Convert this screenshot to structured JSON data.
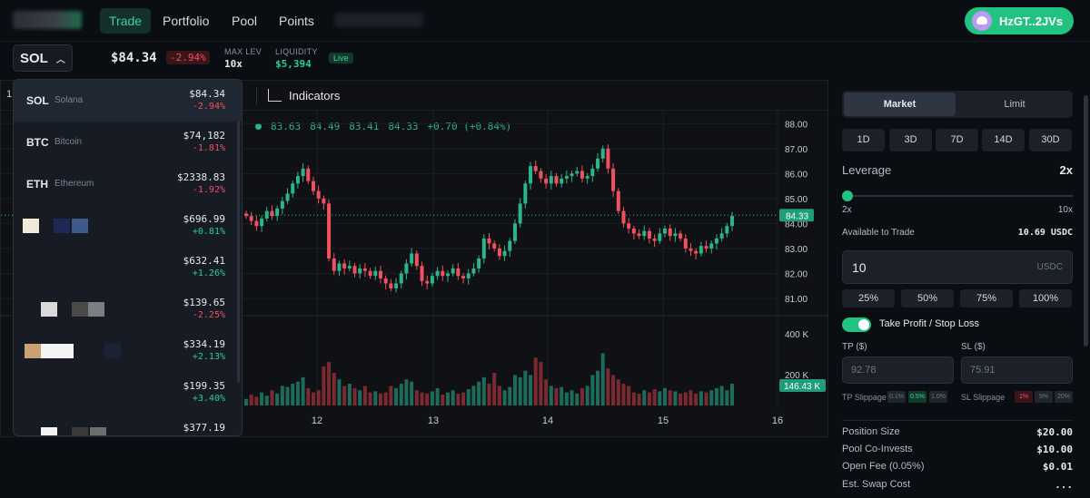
{
  "nav": {
    "items": [
      "Trade",
      "Portfolio",
      "Pool",
      "Points"
    ],
    "wallet": "HzGT..2JVs"
  },
  "ticker": {
    "symbol": "SOL",
    "price": "$84.34",
    "change": "-2.94%",
    "max_lev_label": "MAX LEV",
    "max_lev": "10x",
    "liquidity_label": "LIQUIDITY",
    "liquidity": "$5,394",
    "live": "Live"
  },
  "toolbar": {
    "interval": "1",
    "indicators": "Indicators"
  },
  "chart_data": {
    "type": "candlestick",
    "ohlc_legend": [
      "83.63",
      "84.49",
      "83.41",
      "84.33",
      "+0.70 (+0.84%)"
    ],
    "price_ticks": [
      "88.00",
      "87.00",
      "86.00",
      "85.00",
      "84.00",
      "83.00",
      "82.00",
      "81.00"
    ],
    "current_price_label": "84.33",
    "volume_ticks": [
      "400 K",
      "200 K"
    ],
    "current_volume_label": "146.43 K",
    "date_ticks": [
      "12",
      "13",
      "14",
      "15",
      "16"
    ],
    "ylim": [
      80.6,
      88.3
    ],
    "volume_max": 480,
    "close_series": [
      84.3,
      84.1,
      83.9,
      84.2,
      84.5,
      84.3,
      84.6,
      84.9,
      85.2,
      85.6,
      85.9,
      86.2,
      85.7,
      85.3,
      85.0,
      84.8,
      82.6,
      82.1,
      82.4,
      82.2,
      82.3,
      82.0,
      82.2,
      82.1,
      81.9,
      82.1,
      81.8,
      81.6,
      81.4,
      81.6,
      82.0,
      82.4,
      82.8,
      82.3,
      81.7,
      81.6,
      81.9,
      82.1,
      81.9,
      82.0,
      82.2,
      81.9,
      81.8,
      82.0,
      82.2,
      82.6,
      83.4,
      83.2,
      83.0,
      82.7,
      82.9,
      83.3,
      84.0,
      84.8,
      85.6,
      86.3,
      86.1,
      85.8,
      85.6,
      85.9,
      85.6,
      85.8,
      85.9,
      86.0,
      86.1,
      85.8,
      85.9,
      86.2,
      86.6,
      87.0,
      86.2,
      85.3,
      84.5,
      84.0,
      83.8,
      83.6,
      83.5,
      83.7,
      83.4,
      83.3,
      83.6,
      83.8,
      83.5,
      83.6,
      83.4,
      83.0,
      82.9,
      82.8,
      83.1,
      83.0,
      83.2,
      83.4,
      83.6,
      83.9,
      84.3
    ],
    "volumes": [
      30,
      50,
      40,
      60,
      45,
      70,
      55,
      90,
      85,
      100,
      110,
      130,
      80,
      60,
      70,
      180,
      200,
      150,
      120,
      90,
      100,
      80,
      70,
      90,
      60,
      65,
      55,
      60,
      90,
      80,
      100,
      120,
      110,
      70,
      60,
      55,
      65,
      80,
      50,
      60,
      70,
      55,
      60,
      75,
      90,
      110,
      130,
      100,
      150,
      90,
      70,
      85,
      140,
      130,
      160,
      140,
      220,
      200,
      120,
      90,
      80,
      85,
      60,
      70,
      55,
      80,
      90,
      140,
      160,
      240,
      170,
      140,
      120,
      100,
      90,
      60,
      55,
      70,
      60,
      75,
      65,
      80,
      70,
      65,
      55,
      60,
      70,
      55,
      65,
      60,
      70,
      80,
      90,
      70,
      100
    ],
    "down_flags": [
      0,
      1,
      1,
      0,
      0,
      1,
      0,
      0,
      0,
      0,
      0,
      0,
      1,
      1,
      1,
      1,
      1,
      1,
      0,
      1,
      0,
      1,
      0,
      1,
      1,
      0,
      1,
      1,
      1,
      0,
      0,
      0,
      0,
      1,
      1,
      1,
      0,
      0,
      1,
      0,
      0,
      1,
      1,
      0,
      0,
      0,
      0,
      1,
      1,
      1,
      0,
      0,
      0,
      0,
      0,
      0,
      1,
      1,
      1,
      0,
      1,
      0,
      0,
      0,
      0,
      1,
      0,
      0,
      0,
      0,
      1,
      1,
      1,
      1,
      1,
      1,
      1,
      0,
      1,
      1,
      0,
      0,
      1,
      0,
      1,
      1,
      1,
      1,
      0,
      1,
      0,
      0,
      0,
      0,
      0
    ]
  },
  "markets": [
    {
      "symbol": "SOL",
      "name": "Solana",
      "price": "$84.34",
      "change": "-2.94%",
      "dir": "down"
    },
    {
      "symbol": "BTC",
      "name": "Bitcoin",
      "price": "$74,182",
      "change": "-1.81%",
      "dir": "down"
    },
    {
      "symbol": "ETH",
      "name": "Ethereum",
      "price": "$2338.83",
      "change": "-1.92%",
      "dir": "down"
    },
    {
      "symbol": "",
      "name": "",
      "price": "$696.99",
      "change": "+0.81%",
      "dir": "up"
    },
    {
      "symbol": "",
      "name": "",
      "price": "$632.41",
      "change": "+1.26%",
      "dir": "up"
    },
    {
      "symbol": "",
      "name": "",
      "price": "$139.65",
      "change": "-2.25%",
      "dir": "down"
    },
    {
      "symbol": "",
      "name": "",
      "price": "$334.19",
      "change": "+2.13%",
      "dir": "up"
    },
    {
      "symbol": "",
      "name": "",
      "price": "$199.35",
      "change": "+3.40%",
      "dir": "up"
    },
    {
      "symbol": "",
      "name": "",
      "price": "$377.19",
      "change": "",
      "dir": "up"
    }
  ],
  "order": {
    "tabs": [
      "Market",
      "Limit"
    ],
    "durations": [
      "1D",
      "3D",
      "7D",
      "14D",
      "30D"
    ],
    "leverage_label": "Leverage",
    "leverage_value": "2x",
    "lev_min": "2x",
    "lev_max": "10x",
    "lev_fraction": 0,
    "available_label": "Available to Trade",
    "available_value": "10.69 USDC",
    "amount": "10",
    "amount_unit": "USDC",
    "percents": [
      "25%",
      "50%",
      "75%",
      "100%"
    ],
    "tpsl_label": "Take Profit / Stop Loss",
    "tp_label": "TP ($)",
    "sl_label": "SL ($)",
    "tp_placeholder": "92.78",
    "sl_placeholder": "75.91",
    "tp_slippage_label": "TP Slippage",
    "tp_slippage": [
      "0.1%",
      "0.5%",
      "1.0%"
    ],
    "sl_slippage_label": "SL Slippage",
    "sl_slippage": [
      "1%",
      "5%",
      "20%"
    ],
    "summary": [
      {
        "label": "Position Size",
        "value": "$20.00"
      },
      {
        "label": "Pool Co-Invests",
        "value": "$10.00"
      },
      {
        "label": "Open Fee (0.05%)",
        "value": "$0.01"
      },
      {
        "label": "Est. Swap Cost",
        "value": "..."
      }
    ]
  }
}
